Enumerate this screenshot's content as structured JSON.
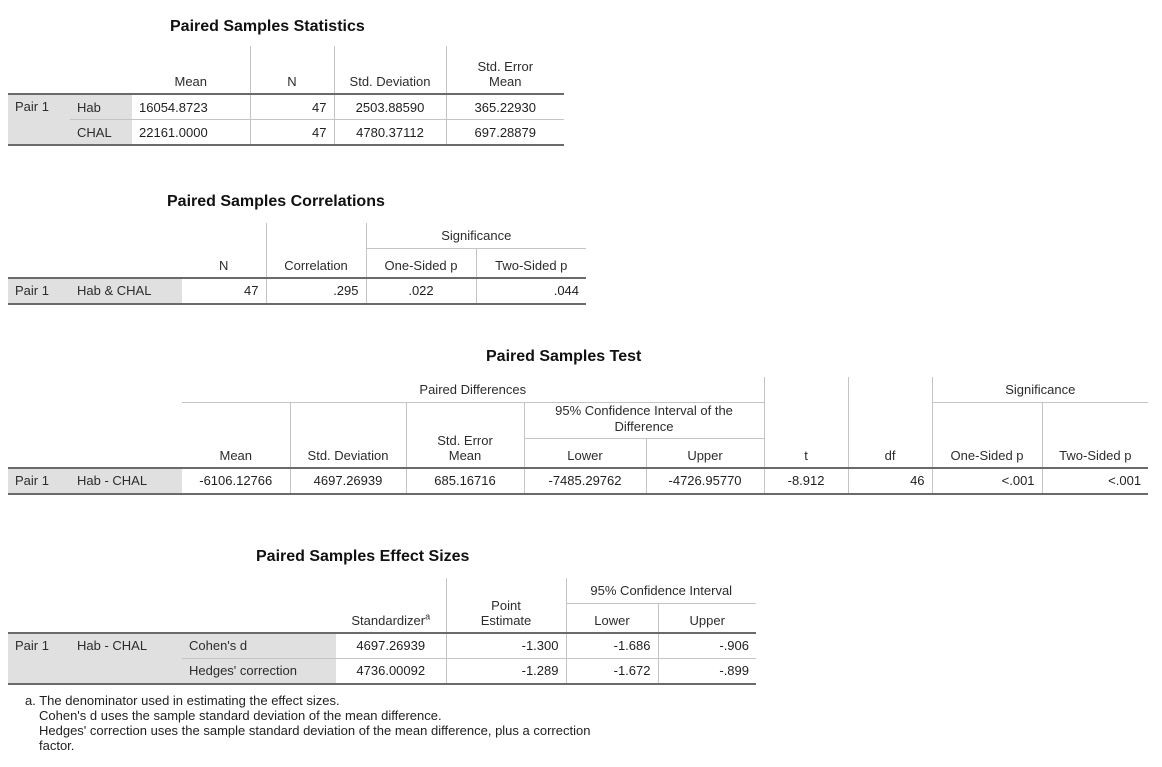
{
  "stats": {
    "title": "Paired Samples Statistics",
    "headers": {
      "mean": "Mean",
      "n": "N",
      "sd": "Std. Deviation",
      "sem_1": "Std. Error",
      "sem_2": "Mean"
    },
    "pair_label": "Pair 1",
    "rows": [
      {
        "var": "Hab",
        "mean": "16054.8723",
        "n": "47",
        "sd": "2503.88590",
        "sem": "365.22930"
      },
      {
        "var": "CHAL",
        "mean": "22161.0000",
        "n": "47",
        "sd": "4780.37112",
        "sem": "697.28879"
      }
    ]
  },
  "corr": {
    "title": "Paired Samples Correlations",
    "headers": {
      "n": "N",
      "correlation": "Correlation",
      "significance": "Significance",
      "one_sided": "One-Sided p",
      "two_sided": "Two-Sided p"
    },
    "pair_label": "Pair 1",
    "row": {
      "var": "Hab & CHAL",
      "n": "47",
      "correlation": ".295",
      "one_sided": ".022",
      "two_sided": ".044"
    }
  },
  "test": {
    "title": "Paired Samples Test",
    "headers": {
      "paired_differences": "Paired Differences",
      "mean": "Mean",
      "sd": "Std. Deviation",
      "sem_1": "Std. Error",
      "sem_2": "Mean",
      "ci_1": "95% Confidence Interval of the",
      "ci_2": "Difference",
      "lower": "Lower",
      "upper": "Upper",
      "t": "t",
      "df": "df",
      "significance": "Significance",
      "one_sided": "One-Sided p",
      "two_sided": "Two-Sided p"
    },
    "pair_label": "Pair 1",
    "row": {
      "var": "Hab - CHAL",
      "mean": "-6106.12766",
      "sd": "4697.26939",
      "sem": "685.16716",
      "lower": "-7485.29762",
      "upper": "-4726.95770",
      "t": "-8.912",
      "df": "46",
      "one_sided": "<.001",
      "two_sided": "<.001"
    }
  },
  "effect": {
    "title": "Paired Samples Effect Sizes",
    "headers": {
      "standardizer": "Standardizer",
      "standardizer_sup": "a",
      "point_1": "Point",
      "point_2": "Estimate",
      "ci": "95% Confidence Interval",
      "lower": "Lower",
      "upper": "Upper"
    },
    "pair_label": "Pair 1",
    "var": "Hab - CHAL",
    "rows": [
      {
        "label": "Cohen's d",
        "standardizer": "4697.26939",
        "point": "-1.300",
        "lower": "-1.686",
        "upper": "-.906"
      },
      {
        "label": "Hedges' correction",
        "standardizer": "4736.00092",
        "point": "-1.289",
        "lower": "-1.672",
        "upper": "-.899"
      }
    ]
  },
  "footnote": {
    "line1": "a. The denominator used in estimating the effect sizes.",
    "line2": "Cohen's d uses the sample standard deviation of the mean difference.",
    "line3": "Hedges' correction uses the sample standard deviation of the mean difference, plus a correction",
    "line4": "factor."
  }
}
